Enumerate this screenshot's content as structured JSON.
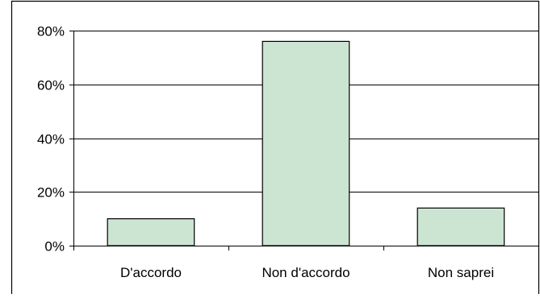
{
  "chart_data": {
    "type": "bar",
    "categories": [
      "D'accordo",
      "Non d'accordo",
      "Non saprei"
    ],
    "values": [
      10,
      76,
      14
    ],
    "y_tick_labels": [
      "0%",
      "20%",
      "40%",
      "60%",
      "80%"
    ],
    "y_ticks": [
      0,
      20,
      40,
      60,
      80
    ],
    "ylim": [
      0,
      80
    ],
    "title": "",
    "xlabel": "",
    "ylabel": "",
    "grid": true,
    "legend": "none",
    "bar_color": "#cce5d3",
    "bar_border_color": "#000000",
    "grid_color": "#000000"
  }
}
